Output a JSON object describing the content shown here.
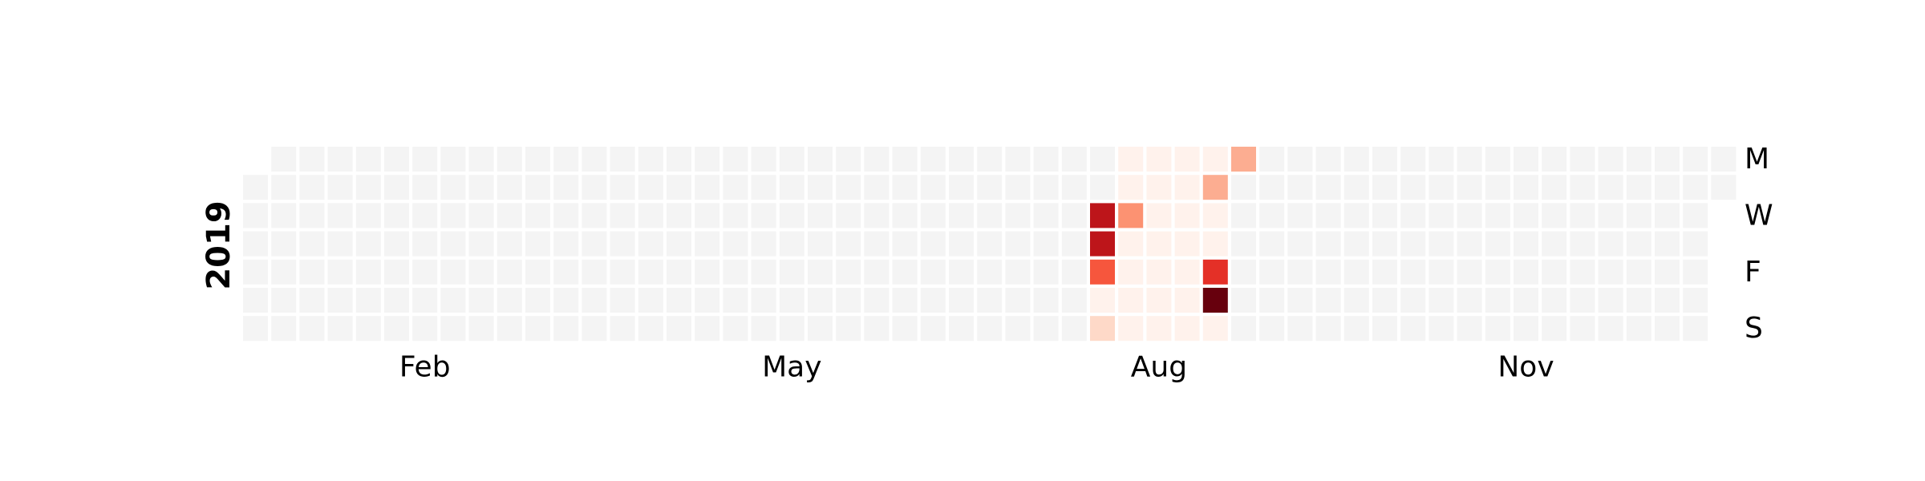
{
  "chart_data": {
    "type": "heatmap",
    "year_label": "2019",
    "start_weekday": "Tuesday",
    "months": [
      "Feb",
      "May",
      "Aug",
      "Nov"
    ],
    "weekdays": [
      "M",
      "W",
      "F",
      "S"
    ],
    "empty_color": "#f4f4f4",
    "colormap": "Reds",
    "active_cells": [
      {
        "date": "2019-07-31",
        "level": 0.85
      },
      {
        "date": "2019-08-01",
        "level": 0.85
      },
      {
        "date": "2019-08-02",
        "level": 0.65
      },
      {
        "date": "2019-08-03",
        "level": 0.02
      },
      {
        "date": "2019-08-04",
        "level": 0.18
      },
      {
        "date": "2019-08-05",
        "level": 0.02
      },
      {
        "date": "2019-08-06",
        "level": 0.02
      },
      {
        "date": "2019-08-07",
        "level": 0.45
      },
      {
        "date": "2019-08-08",
        "level": 0.02
      },
      {
        "date": "2019-08-09",
        "level": 0.02
      },
      {
        "date": "2019-08-10",
        "level": 0.02
      },
      {
        "date": "2019-08-11",
        "level": 0.02
      },
      {
        "date": "2019-08-12",
        "level": 0.02
      },
      {
        "date": "2019-08-13",
        "level": 0.02
      },
      {
        "date": "2019-08-14",
        "level": 0.02
      },
      {
        "date": "2019-08-15",
        "level": 0.02
      },
      {
        "date": "2019-08-16",
        "level": 0.02
      },
      {
        "date": "2019-08-17",
        "level": 0.02
      },
      {
        "date": "2019-08-18",
        "level": 0.02
      },
      {
        "date": "2019-08-19",
        "level": 0.02
      },
      {
        "date": "2019-08-20",
        "level": 0.02
      },
      {
        "date": "2019-08-21",
        "level": 0.02
      },
      {
        "date": "2019-08-22",
        "level": 0.02
      },
      {
        "date": "2019-08-23",
        "level": 0.02
      },
      {
        "date": "2019-08-24",
        "level": 0.02
      },
      {
        "date": "2019-08-25",
        "level": 0.02
      },
      {
        "date": "2019-08-26",
        "level": 0.02
      },
      {
        "date": "2019-08-27",
        "level": 0.35
      },
      {
        "date": "2019-08-28",
        "level": 0.02
      },
      {
        "date": "2019-08-29",
        "level": 0.02
      },
      {
        "date": "2019-08-30",
        "level": 0.75
      },
      {
        "date": "2019-08-31",
        "level": 1.0
      },
      {
        "date": "2019-09-01",
        "level": 0.02
      },
      {
        "date": "2019-09-02",
        "level": 0.35
      }
    ]
  }
}
